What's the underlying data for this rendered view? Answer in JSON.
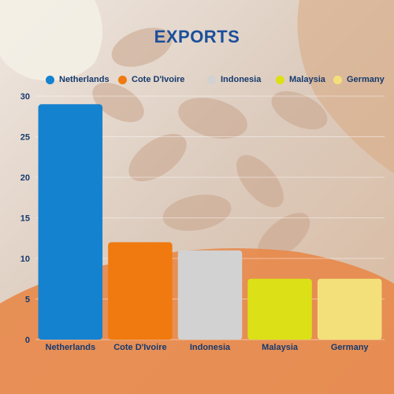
{
  "chart_data": {
    "type": "bar",
    "title": "EXPORTS",
    "categories": [
      "Netherlands",
      "Cote D'Ivoire",
      "Indonesia",
      "Malaysia",
      "Germany"
    ],
    "values": [
      29,
      12,
      11,
      7.5,
      7.5
    ],
    "colors": [
      "#1582cf",
      "#f07a10",
      "#d2d2d2",
      "#dce016",
      "#f3e07a"
    ],
    "ylim": [
      0,
      30
    ],
    "yticks": [
      0,
      5,
      10,
      15,
      20,
      25,
      30
    ],
    "grid": true,
    "legend_placement": "top",
    "xlabel": "",
    "ylabel": ""
  },
  "theme": {
    "title_color": "#1a4f9a",
    "label_color": "#163a6e",
    "background_top": "#d9c8bc",
    "background_bottom": "#e69966"
  }
}
